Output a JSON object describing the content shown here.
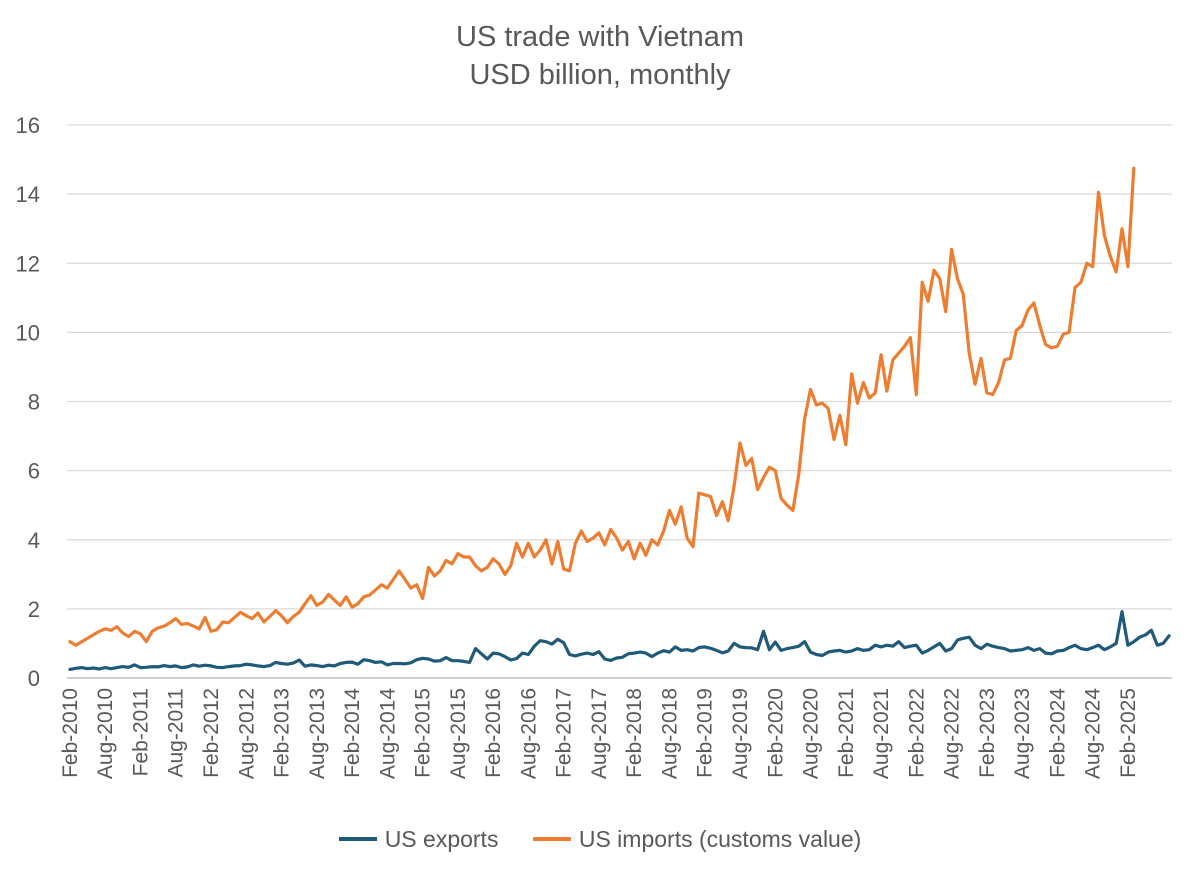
{
  "chart_data": {
    "type": "line",
    "title": "US trade with Vietnam",
    "subtitle": "USD billion, monthly",
    "xlabel": "",
    "ylabel": "",
    "ylim": [
      0,
      16
    ],
    "yticks": [
      0,
      2,
      4,
      6,
      8,
      10,
      12,
      14,
      16
    ],
    "grid": true,
    "legend_position": "bottom",
    "x_start": "Feb-2010",
    "frequency": "monthly",
    "x_tick_labels": [
      "Feb-2010",
      "Aug-2010",
      "Feb-2011",
      "Aug-2011",
      "Feb-2012",
      "Aug-2012",
      "Feb-2013",
      "Aug-2013",
      "Feb-2014",
      "Aug-2014",
      "Feb-2015",
      "Aug-2015",
      "Feb-2016",
      "Aug-2016",
      "Feb-2017",
      "Aug-2017",
      "Feb-2018",
      "Aug-2018",
      "Feb-2019",
      "Aug-2019",
      "Feb-2020",
      "Aug-2020",
      "Feb-2021",
      "Aug-2021",
      "Feb-2022",
      "Aug-2022",
      "Feb-2023",
      "Aug-2023",
      "Feb-2024",
      "Aug-2024",
      "Feb-2025"
    ],
    "series": [
      {
        "name": "US exports",
        "color": "#1f5a7a",
        "values": [
          0.25,
          0.28,
          0.3,
          0.27,
          0.29,
          0.26,
          0.3,
          0.27,
          0.3,
          0.33,
          0.31,
          0.38,
          0.3,
          0.31,
          0.33,
          0.32,
          0.36,
          0.33,
          0.35,
          0.3,
          0.32,
          0.38,
          0.34,
          0.37,
          0.35,
          0.31,
          0.3,
          0.33,
          0.35,
          0.36,
          0.4,
          0.38,
          0.35,
          0.33,
          0.36,
          0.45,
          0.42,
          0.4,
          0.43,
          0.52,
          0.34,
          0.38,
          0.36,
          0.33,
          0.37,
          0.35,
          0.42,
          0.45,
          0.46,
          0.4,
          0.53,
          0.5,
          0.45,
          0.47,
          0.38,
          0.42,
          0.42,
          0.41,
          0.44,
          0.53,
          0.57,
          0.55,
          0.49,
          0.5,
          0.59,
          0.5,
          0.5,
          0.48,
          0.45,
          0.85,
          0.7,
          0.55,
          0.72,
          0.7,
          0.62,
          0.52,
          0.56,
          0.72,
          0.68,
          0.92,
          1.08,
          1.05,
          0.98,
          1.12,
          1.02,
          0.68,
          0.64,
          0.69,
          0.72,
          0.68,
          0.76,
          0.55,
          0.51,
          0.58,
          0.6,
          0.7,
          0.72,
          0.75,
          0.72,
          0.62,
          0.72,
          0.79,
          0.75,
          0.9,
          0.8,
          0.82,
          0.78,
          0.88,
          0.9,
          0.86,
          0.8,
          0.73,
          0.78,
          1.0,
          0.9,
          0.88,
          0.87,
          0.82,
          1.35,
          0.82,
          1.04,
          0.8,
          0.85,
          0.88,
          0.92,
          1.05,
          0.75,
          0.68,
          0.65,
          0.75,
          0.78,
          0.8,
          0.75,
          0.78,
          0.85,
          0.8,
          0.82,
          0.95,
          0.9,
          0.95,
          0.92,
          1.05,
          0.88,
          0.92,
          0.95,
          0.72,
          0.8,
          0.9,
          1.0,
          0.78,
          0.85,
          1.1,
          1.15,
          1.18,
          0.95,
          0.85,
          0.98,
          0.92,
          0.88,
          0.85,
          0.78,
          0.8,
          0.82,
          0.88,
          0.8,
          0.85,
          0.72,
          0.7,
          0.78,
          0.8,
          0.88,
          0.95,
          0.85,
          0.82,
          0.88,
          0.95,
          0.82,
          0.9,
          1.0,
          1.92,
          0.95,
          1.05,
          1.18,
          1.25,
          1.38,
          0.95,
          1.0,
          1.22
        ]
      },
      {
        "name": "US imports (customs value)",
        "color": "#ed7d31",
        "values": [
          1.05,
          0.95,
          1.05,
          1.15,
          1.25,
          1.35,
          1.42,
          1.38,
          1.48,
          1.3,
          1.2,
          1.35,
          1.28,
          1.05,
          1.35,
          1.45,
          1.5,
          1.6,
          1.72,
          1.55,
          1.58,
          1.5,
          1.42,
          1.75,
          1.35,
          1.4,
          1.62,
          1.6,
          1.75,
          1.9,
          1.8,
          1.72,
          1.88,
          1.62,
          1.78,
          1.95,
          1.8,
          1.6,
          1.78,
          1.9,
          2.15,
          2.38,
          2.1,
          2.2,
          2.42,
          2.25,
          2.1,
          2.35,
          2.05,
          2.15,
          2.35,
          2.4,
          2.55,
          2.7,
          2.6,
          2.85,
          3.1,
          2.85,
          2.6,
          2.7,
          2.3,
          3.2,
          2.95,
          3.1,
          3.4,
          3.3,
          3.6,
          3.5,
          3.5,
          3.25,
          3.1,
          3.2,
          3.45,
          3.3,
          3.0,
          3.25,
          3.9,
          3.5,
          3.9,
          3.5,
          3.7,
          4.0,
          3.3,
          3.95,
          3.15,
          3.1,
          3.9,
          4.25,
          3.95,
          4.05,
          4.2,
          3.85,
          4.3,
          4.05,
          3.7,
          3.95,
          3.45,
          3.9,
          3.55,
          4.0,
          3.85,
          4.25,
          4.85,
          4.45,
          4.95,
          4.05,
          3.8,
          5.35,
          5.3,
          5.25,
          4.7,
          5.1,
          4.55,
          5.55,
          6.8,
          6.15,
          6.35,
          5.45,
          5.8,
          6.1,
          6.0,
          5.2,
          5.0,
          4.85,
          5.9,
          7.5,
          8.35,
          7.9,
          7.95,
          7.8,
          6.9,
          7.6,
          6.75,
          8.8,
          7.95,
          8.55,
          8.1,
          8.25,
          9.35,
          8.3,
          9.2,
          9.4,
          9.6,
          9.85,
          8.2,
          11.45,
          10.9,
          11.8,
          11.55,
          10.6,
          12.4,
          11.55,
          11.1,
          9.4,
          8.5,
          9.25,
          8.25,
          8.2,
          8.55,
          9.2,
          9.25,
          10.05,
          10.2,
          10.65,
          10.85,
          10.2,
          9.65,
          9.55,
          9.6,
          9.95,
          10.0,
          11.3,
          11.45,
          12.0,
          11.9,
          14.05,
          12.8,
          12.2,
          11.75,
          13.0,
          11.9,
          14.75
        ]
      }
    ]
  }
}
